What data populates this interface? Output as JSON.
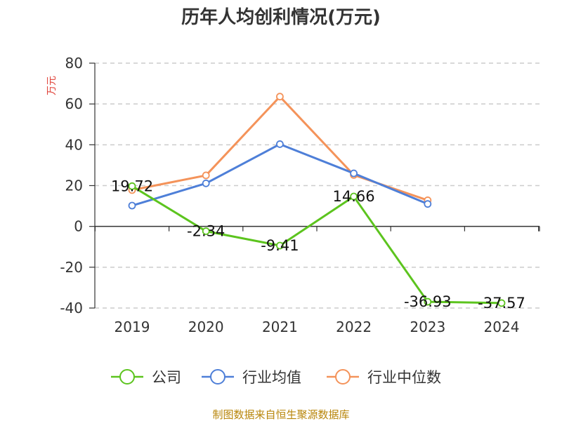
{
  "chart_data": {
    "type": "line",
    "title": "历年人均创利情况(万元)",
    "ylabel": "万元",
    "xlabel": "",
    "categories": [
      "2019",
      "2020",
      "2021",
      "2022",
      "2023",
      "2024"
    ],
    "ylim": [
      -40,
      80
    ],
    "yticks": [
      80,
      60,
      40,
      20,
      0,
      -20,
      -40
    ],
    "grid": true,
    "legend_position": "bottom",
    "series": [
      {
        "name": "公司",
        "color": "#5cc41e",
        "values": [
          19.72,
          -2.34,
          -9.41,
          14.66,
          -36.93,
          -37.57
        ],
        "labels": [
          "19.72",
          "-2.34",
          "-9.41",
          "14.66",
          "-36.93",
          "-37.57"
        ]
      },
      {
        "name": "行业均值",
        "color": "#4e7fd8",
        "values": [
          10.2,
          21.1,
          40.3,
          26.0,
          11.0,
          null
        ]
      },
      {
        "name": "行业中位数",
        "color": "#f4935a",
        "values": [
          17.8,
          25.0,
          63.6,
          25.2,
          12.8,
          null
        ]
      }
    ]
  },
  "source": "制图数据来自恒生聚源数据库"
}
